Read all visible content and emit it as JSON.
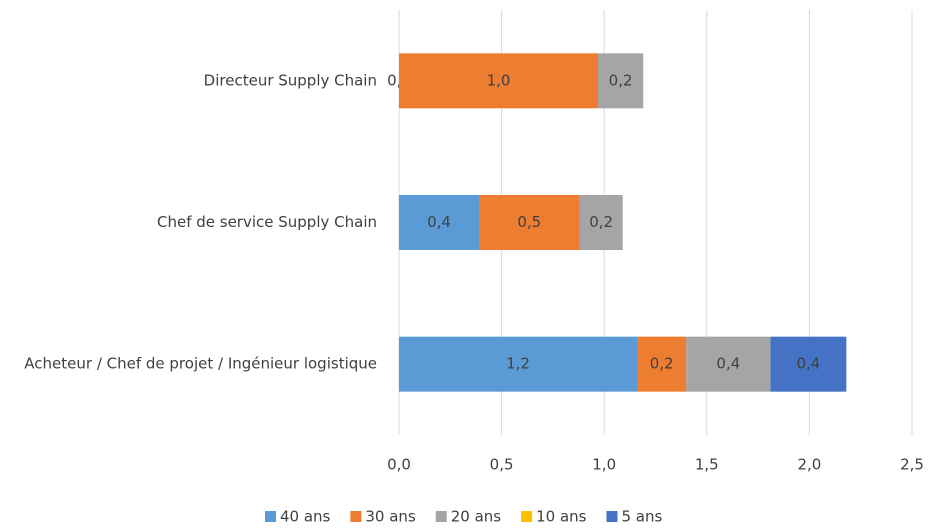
{
  "chart_data": {
    "type": "stacked-bar-horizontal",
    "categories": [
      "Directeur Supply Chain",
      "Chef de service Supply Chain",
      "Acheteur / Chef de projet / Ingénieur logistique"
    ],
    "series": [
      {
        "name": "40 ans",
        "color": "#5b9bd5",
        "values": [
          0.0,
          0.39,
          1.16
        ],
        "value_labels": [
          "0,0",
          "0,4",
          "1,2"
        ]
      },
      {
        "name": "30 ans",
        "color": "#ed7d31",
        "values": [
          0.97,
          0.49,
          0.24
        ],
        "value_labels": [
          "1,0",
          "0,5",
          "0,2"
        ]
      },
      {
        "name": "20 ans",
        "color": "#a5a5a5",
        "values": [
          0.22,
          0.21,
          0.41
        ],
        "value_labels": [
          "0,2",
          "0,2",
          "0,4"
        ]
      },
      {
        "name": "10 ans",
        "color": "#ffc000",
        "values": [
          null,
          null,
          null
        ],
        "value_labels": [
          null,
          null,
          null
        ]
      },
      {
        "name": "5 ans",
        "color": "#4472c4",
        "values": [
          null,
          null,
          0.37
        ],
        "value_labels": [
          null,
          null,
          "0,4"
        ]
      }
    ],
    "xlim": [
      0,
      2.5
    ],
    "xticks": [
      {
        "value": 0,
        "label": "0,0"
      },
      {
        "value": 0.5,
        "label": "0,5"
      },
      {
        "value": 1,
        "label": "1,0"
      },
      {
        "value": 1.5,
        "label": "1,5"
      },
      {
        "value": 2,
        "label": "2,0"
      },
      {
        "value": 2.5,
        "label": "2,5"
      }
    ],
    "grid": true,
    "legend": "bottom"
  }
}
